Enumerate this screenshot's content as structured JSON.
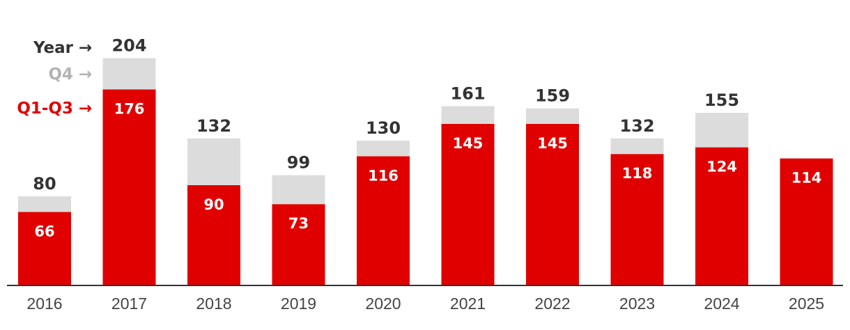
{
  "chart_data": {
    "type": "bar",
    "stacked": true,
    "categories": [
      "2016",
      "2017",
      "2018",
      "2019",
      "2020",
      "2021",
      "2022",
      "2023",
      "2024",
      "2025"
    ],
    "series": [
      {
        "name": "Q1-Q3",
        "values": [
          66,
          176,
          90,
          73,
          116,
          145,
          145,
          118,
          124,
          114
        ],
        "color": "#e00000"
      },
      {
        "name": "Q4",
        "values": [
          14,
          28,
          42,
          26,
          14,
          16,
          14,
          14,
          31,
          null
        ],
        "color": "#dcdcdc"
      }
    ],
    "totals": [
      80,
      204,
      132,
      99,
      130,
      161,
      159,
      132,
      155,
      null
    ],
    "legend": {
      "year": "Year",
      "q4": "Q4",
      "q13": "Q1-Q3",
      "arrow": "→",
      "placement": "top-left"
    },
    "colors": {
      "q13": "#e00000",
      "q4": "#dcdcdc",
      "q4_label": "#b3b3b3",
      "total_label": "#333333",
      "axis": "#333333"
    },
    "ylim": [
      0,
      225
    ],
    "grid": false
  }
}
